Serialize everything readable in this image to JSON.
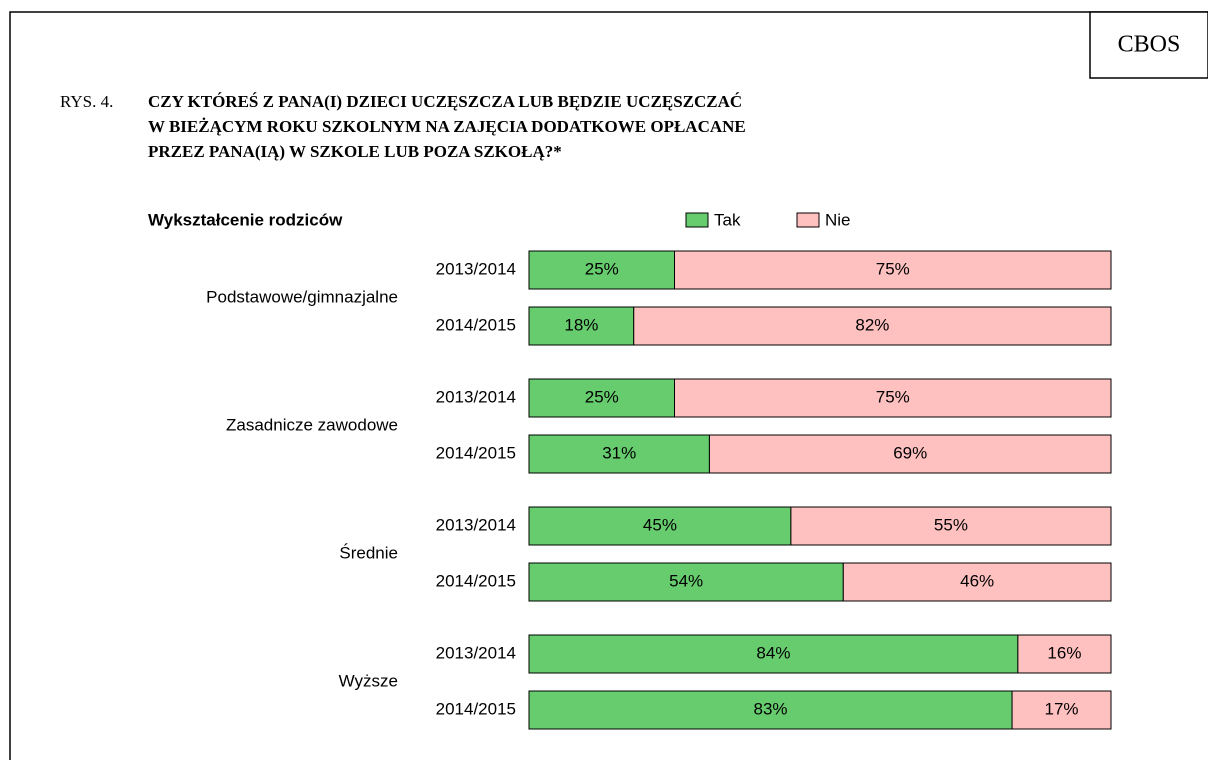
{
  "header": {
    "badge": "CBOS",
    "figure_label": "RYS. 4."
  },
  "chart_data": {
    "type": "stacked_barh",
    "title": [
      "CZY KTÓREŚ Z PANA(I) DZIECI UCZĘSZCZA LUB BĘDZIE UCZĘSZCZAĆ",
      "W BIEŻĄCYM ROKU SZKOLNYM NA ZAJĘCIA DODATKOWE OPŁACANE",
      "PRZEZ PANA(IĄ) W SZKOLE LUB POZA SZKOŁĄ?*"
    ],
    "group_axis_label": "Wykształcenie rodziców",
    "groups": [
      "Podstawowe/gimnazjalne",
      "Zasadnicze zawodowe",
      "Średnie",
      "Wyższe"
    ],
    "categories": [
      "2013/2014",
      "2014/2015",
      "2013/2014",
      "2014/2015",
      "2013/2014",
      "2014/2015",
      "2013/2014",
      "2014/2015"
    ],
    "xlim": [
      0,
      100
    ],
    "series": [
      {
        "name": "Tak",
        "color": "#66cc6e",
        "values": [
          25,
          18,
          25,
          31,
          45,
          54,
          84,
          83
        ],
        "value_labels": [
          "25%",
          "18%",
          "25%",
          "31%",
          "45%",
          "54%",
          "84%",
          "83%"
        ]
      },
      {
        "name": "Nie",
        "color": "#ffc0c0",
        "values": [
          75,
          82,
          75,
          69,
          55,
          46,
          16,
          17
        ],
        "value_labels": [
          "75%",
          "82%",
          "75%",
          "69%",
          "55%",
          "46%",
          "16%",
          "17%"
        ]
      }
    ],
    "legend": "top"
  }
}
